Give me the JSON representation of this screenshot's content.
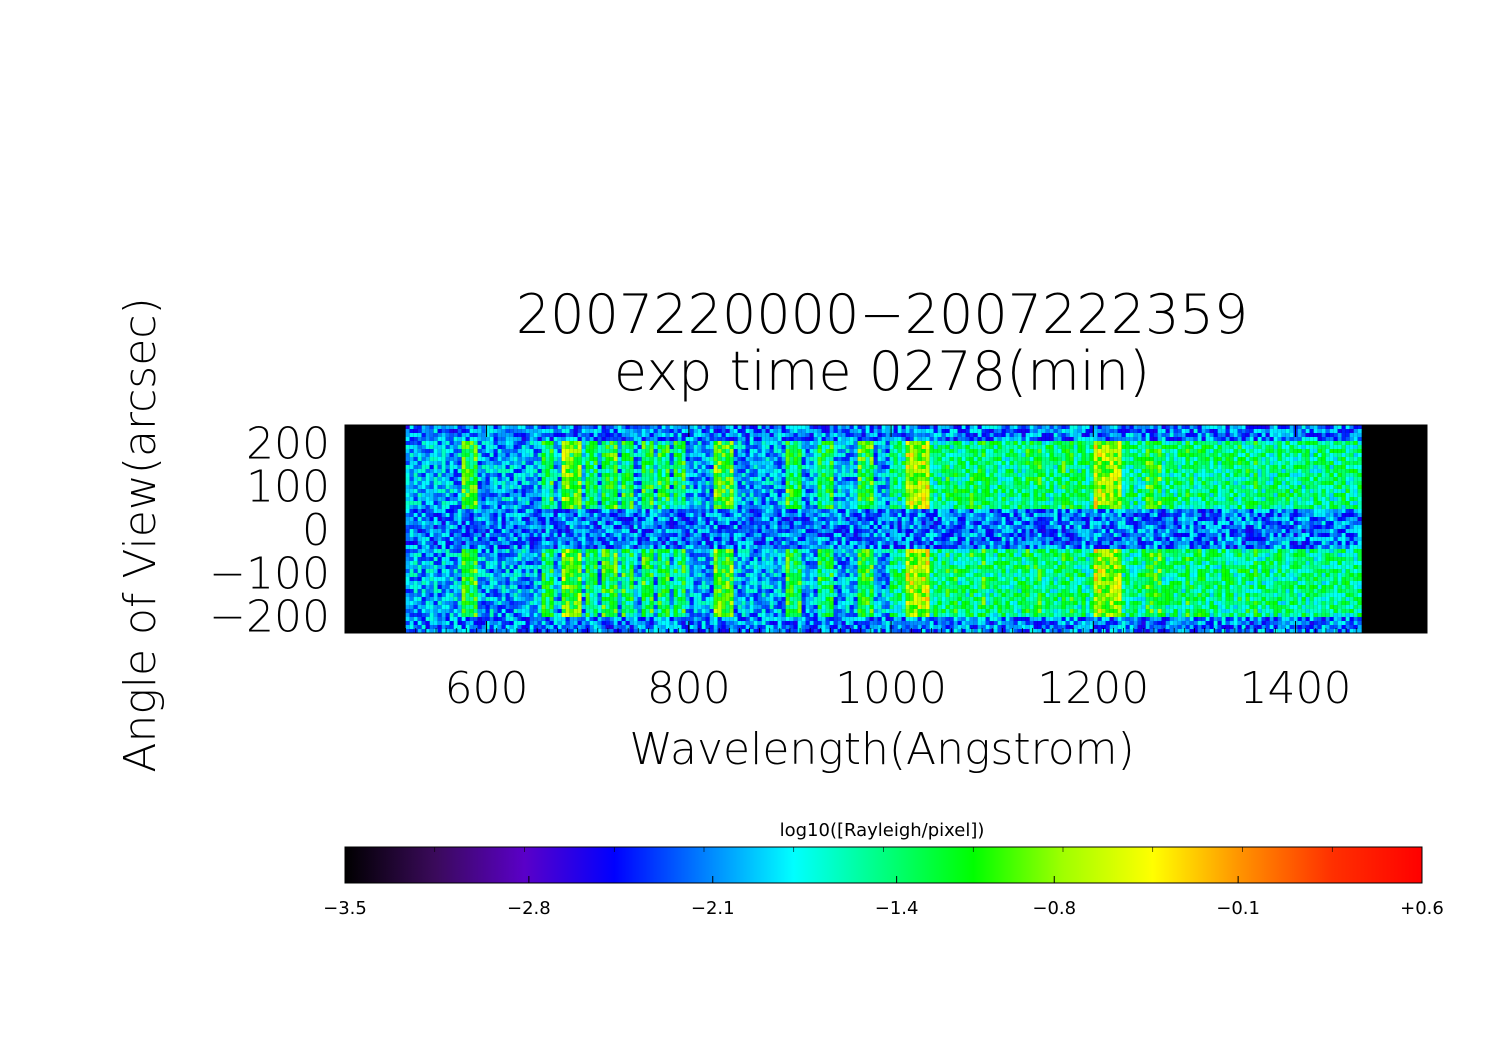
{
  "chart_data": {
    "type": "heatmap",
    "title": "2007220000−2007222359",
    "subtitle": "exp time 0278(min)",
    "xlabel": "Wavelength(Angstrom)",
    "ylabel": "Angle of View(arcsec)",
    "xlim": [
      460,
      1530
    ],
    "ylim": [
      -240,
      240
    ],
    "data_x_range": [
      520,
      1465
    ],
    "x_ticks": [
      600,
      800,
      1000,
      1200,
      1400
    ],
    "x_tick_labels": [
      "600",
      "800",
      "1000",
      "1200",
      "1400"
    ],
    "y_ticks": [
      200,
      100,
      0,
      -100,
      -200
    ],
    "y_tick_labels": [
      "200",
      "100",
      "0",
      "−100",
      "−200"
    ],
    "slit_bands_arcsec": [
      [
        45,
        200
      ],
      [
        -200,
        -45
      ]
    ],
    "background_level": -2.0,
    "emission_lines": [
      {
        "wavelength": 584,
        "level": -1.25,
        "width": 9
      },
      {
        "wavelength": 660,
        "level": -1.45,
        "width": 7
      },
      {
        "wavelength": 685,
        "level": -1.1,
        "width": 10
      },
      {
        "wavelength": 705,
        "level": -1.5,
        "width": 6
      },
      {
        "wavelength": 720,
        "level": -1.35,
        "width": 8
      },
      {
        "wavelength": 740,
        "level": -1.45,
        "width": 6
      },
      {
        "wavelength": 760,
        "level": -1.35,
        "width": 7
      },
      {
        "wavelength": 775,
        "level": -1.4,
        "width": 7
      },
      {
        "wavelength": 790,
        "level": -1.5,
        "width": 6
      },
      {
        "wavelength": 835,
        "level": -1.2,
        "width": 9
      },
      {
        "wavelength": 905,
        "level": -1.4,
        "width": 8
      },
      {
        "wavelength": 935,
        "level": -1.5,
        "width": 7
      },
      {
        "wavelength": 975,
        "level": -1.3,
        "width": 8
      },
      {
        "wavelength": 1026,
        "level": -0.85,
        "width": 12
      },
      {
        "wavelength": 1060,
        "level": -1.5,
        "width": 7
      },
      {
        "wavelength": 1085,
        "level": -1.5,
        "width": 7
      },
      {
        "wavelength": 1140,
        "level": -1.5,
        "width": 7
      },
      {
        "wavelength": 1175,
        "level": -1.45,
        "width": 7
      },
      {
        "wavelength": 1216,
        "level": -0.9,
        "width": 14
      },
      {
        "wavelength": 1260,
        "level": -1.3,
        "width": 8
      },
      {
        "wavelength": 1300,
        "level": -1.55,
        "width": 7
      },
      {
        "wavelength": 1340,
        "level": -1.6,
        "width": 7
      },
      {
        "wavelength": 1356,
        "level": -1.55,
        "width": 7
      }
    ],
    "continuum": {
      "from": 1000,
      "to": 1465,
      "level": -1.5
    },
    "colorbar": {
      "label": "log10([Rayleigh/pixel])",
      "range": [
        -3.5,
        0.6
      ],
      "tick_values": [
        -3.5,
        -2.8,
        -2.1,
        -1.4,
        -0.8,
        -0.1,
        0.6
      ],
      "tick_labels": [
        "−3.5",
        "−2.8",
        "−2.1",
        "−1.4",
        "−0.8",
        "−0.1",
        "+0.6"
      ],
      "colors": [
        "#000000",
        "#3a0a5a",
        "#5a00c8",
        "#0000ff",
        "#0080ff",
        "#00ffff",
        "#00ff80",
        "#00ff00",
        "#a0ff00",
        "#ffff00",
        "#ff9000",
        "#ff3000",
        "#ff0000"
      ]
    }
  }
}
